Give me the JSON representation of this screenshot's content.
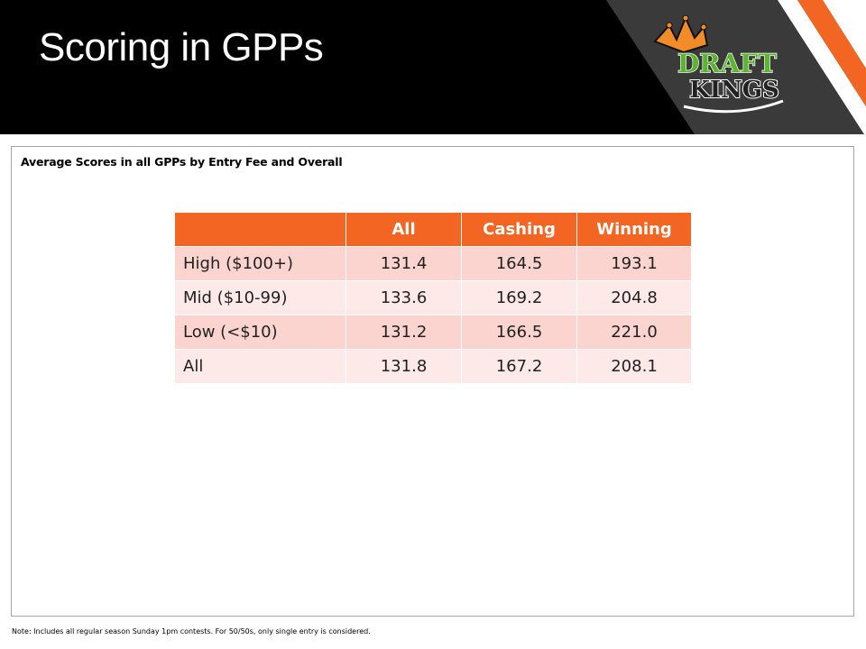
{
  "slide": {
    "title": "Scoring in GPPs",
    "logo": {
      "line1": "DRAFT",
      "line2": "KINGS",
      "icon": "crown-icon"
    }
  },
  "panel": {
    "title": "Average Scores in all GPPs by Entry Fee and Overall"
  },
  "table": {
    "columns": [
      "",
      "All",
      "Cashing",
      "Winning"
    ],
    "rows": [
      {
        "label": "High ($100+)",
        "all": "131.4",
        "cashing": "164.5",
        "winning": "193.1"
      },
      {
        "label": "Mid ($10-99)",
        "all": "133.6",
        "cashing": "169.2",
        "winning": "204.8"
      },
      {
        "label": "Low (<$10)",
        "all": "131.2",
        "cashing": "166.5",
        "winning": "221.0"
      },
      {
        "label": "All",
        "all": "131.8",
        "cashing": "167.2",
        "winning": "208.1"
      }
    ]
  },
  "footnote": "Note: Includes all regular season Sunday 1pm contests. For 50/50s, only single entry is considered.",
  "colors": {
    "header_bg": "#000000",
    "accent_orange": "#f26522",
    "stripe_gray": "#3a3a3a",
    "row_dark": "#fbd4cf",
    "row_light": "#fde9e7",
    "logo_green": "#5cb531",
    "logo_crown": "#f28c28"
  }
}
